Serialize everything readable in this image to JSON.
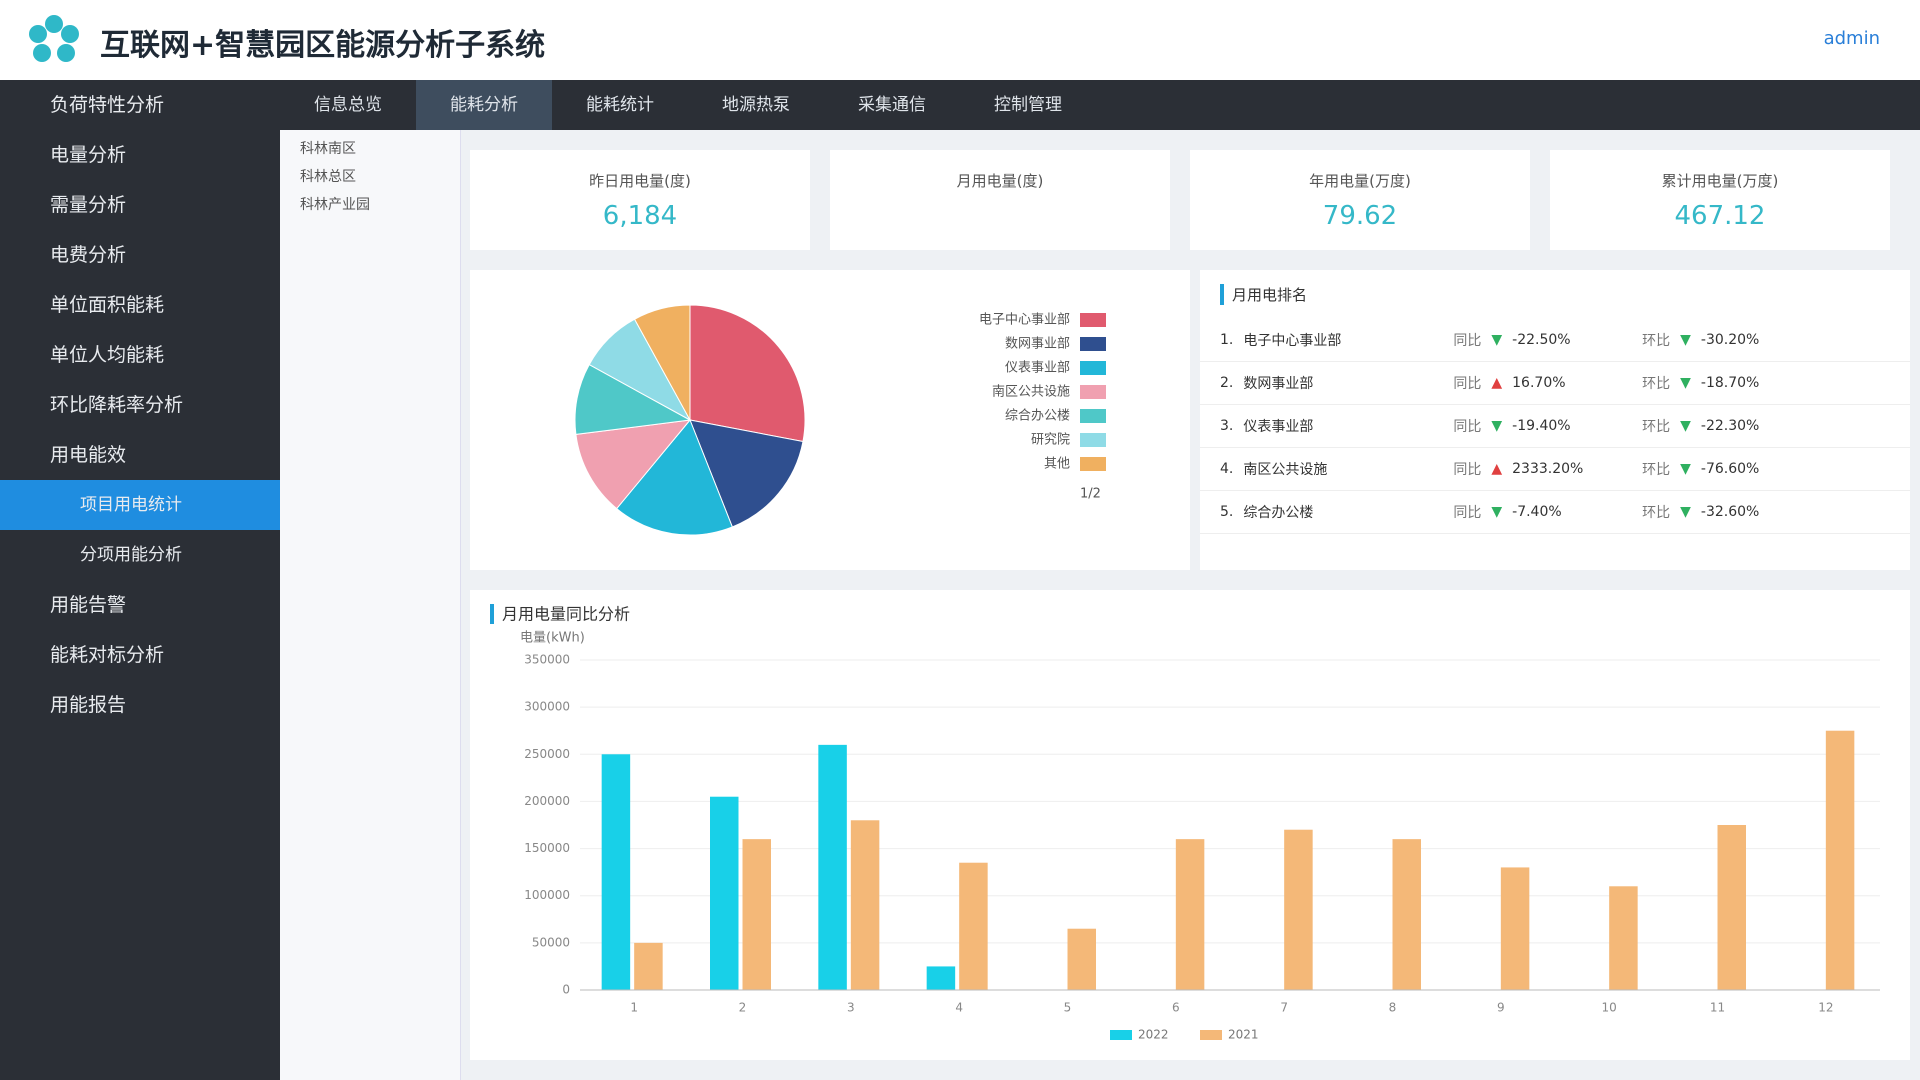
{
  "header": {
    "title": "互联网+智慧园区能源分析子系统",
    "user": "admin"
  },
  "sidebar": {
    "items": [
      {
        "label": "负荷特性分析"
      },
      {
        "label": "电量分析"
      },
      {
        "label": "需量分析"
      },
      {
        "label": "电费分析"
      },
      {
        "label": "单位面积能耗"
      },
      {
        "label": "单位人均能耗"
      },
      {
        "label": "环比降耗率分析"
      },
      {
        "label": "用电能效"
      },
      {
        "label": "项目用电统计",
        "active": true,
        "sub": true
      },
      {
        "label": "分项用能分析",
        "sub": true
      },
      {
        "label": "用能告警"
      },
      {
        "label": "能耗对标分析"
      },
      {
        "label": "用能报告"
      }
    ]
  },
  "tabs": [
    {
      "label": "信息总览"
    },
    {
      "label": "能耗分析",
      "active": true
    },
    {
      "label": "能耗统计"
    },
    {
      "label": "地源热泵"
    },
    {
      "label": "采集通信"
    },
    {
      "label": "控制管理"
    }
  ],
  "tree": [
    "科林南区",
    "科林总区",
    "科林产业园"
  ],
  "kpis": [
    {
      "label": "昨日用电量(度)",
      "value": "6,184"
    },
    {
      "label": "月用电量(度)"
    },
    {
      "label": "年用电量(万度)",
      "value": "79.62"
    },
    {
      "label": "累计用电量(万度)",
      "value": "467.12"
    }
  ],
  "ranking": {
    "title": "月用电排名",
    "rows": [
      {
        "rank": "1.",
        "name": "电子中心事业部",
        "yoy_label": "同比",
        "yoy": "-22.50%",
        "yoy_trend": "down",
        "mom_label": "环比",
        "mom": "-30.20%",
        "mom_trend": "down"
      },
      {
        "rank": "2.",
        "name": "数网事业部",
        "yoy_label": "同比",
        "yoy": "16.70%",
        "yoy_trend": "up",
        "mom_label": "环比",
        "mom": "-18.70%",
        "mom_trend": "down"
      },
      {
        "rank": "3.",
        "name": "仪表事业部",
        "yoy_label": "同比",
        "yoy": "-19.40%",
        "yoy_trend": "down",
        "mom_label": "环比",
        "mom": "-22.30%",
        "mom_trend": "down"
      },
      {
        "rank": "4.",
        "name": "南区公共设施",
        "yoy_label": "同比",
        "yoy": "2333.20%",
        "yoy_trend": "up",
        "mom_label": "环比",
        "mom": "-76.60%",
        "mom_trend": "down"
      },
      {
        "rank": "5.",
        "name": "综合办公楼",
        "yoy_label": "同比",
        "yoy": "-7.40%",
        "yoy_trend": "down",
        "mom_label": "环比",
        "mom": "-32.60%",
        "mom_trend": "down"
      }
    ]
  },
  "chart_data": [
    {
      "type": "pie",
      "categories": [
        "电子中心事业部",
        "数网事业部",
        "仪表事业部",
        "南区公共设施",
        "综合办公楼",
        "研究院",
        "其他"
      ],
      "values": [
        28,
        16,
        17,
        12,
        10,
        9,
        8
      ],
      "colors": [
        "#e05a6e",
        "#2f4f8f",
        "#22b7d8",
        "#f0a0b0",
        "#4fc8c8",
        "#8fdbe6",
        "#f0b060"
      ],
      "legend_page": "1/2"
    },
    {
      "type": "bar",
      "title": "月用电量同比分析",
      "y_label": "电量(kWh)",
      "categories": [
        "1",
        "2",
        "3",
        "4",
        "5",
        "6",
        "7",
        "8",
        "9",
        "10",
        "11",
        "12"
      ],
      "series": [
        {
          "name": "2022",
          "color": "#18d0e8",
          "values": [
            250000,
            205000,
            260000,
            25000,
            null,
            null,
            null,
            null,
            null,
            null,
            null,
            null
          ]
        },
        {
          "name": "2021",
          "color": "#f4b878",
          "values": [
            50000,
            160000,
            180000,
            135000,
            65000,
            160000,
            170000,
            160000,
            130000,
            110000,
            175000,
            275000
          ]
        }
      ],
      "ylim": [
        0,
        350000
      ],
      "yticks": [
        0,
        50000,
        100000,
        150000,
        200000,
        250000,
        300000,
        350000
      ],
      "grid": true
    }
  ]
}
